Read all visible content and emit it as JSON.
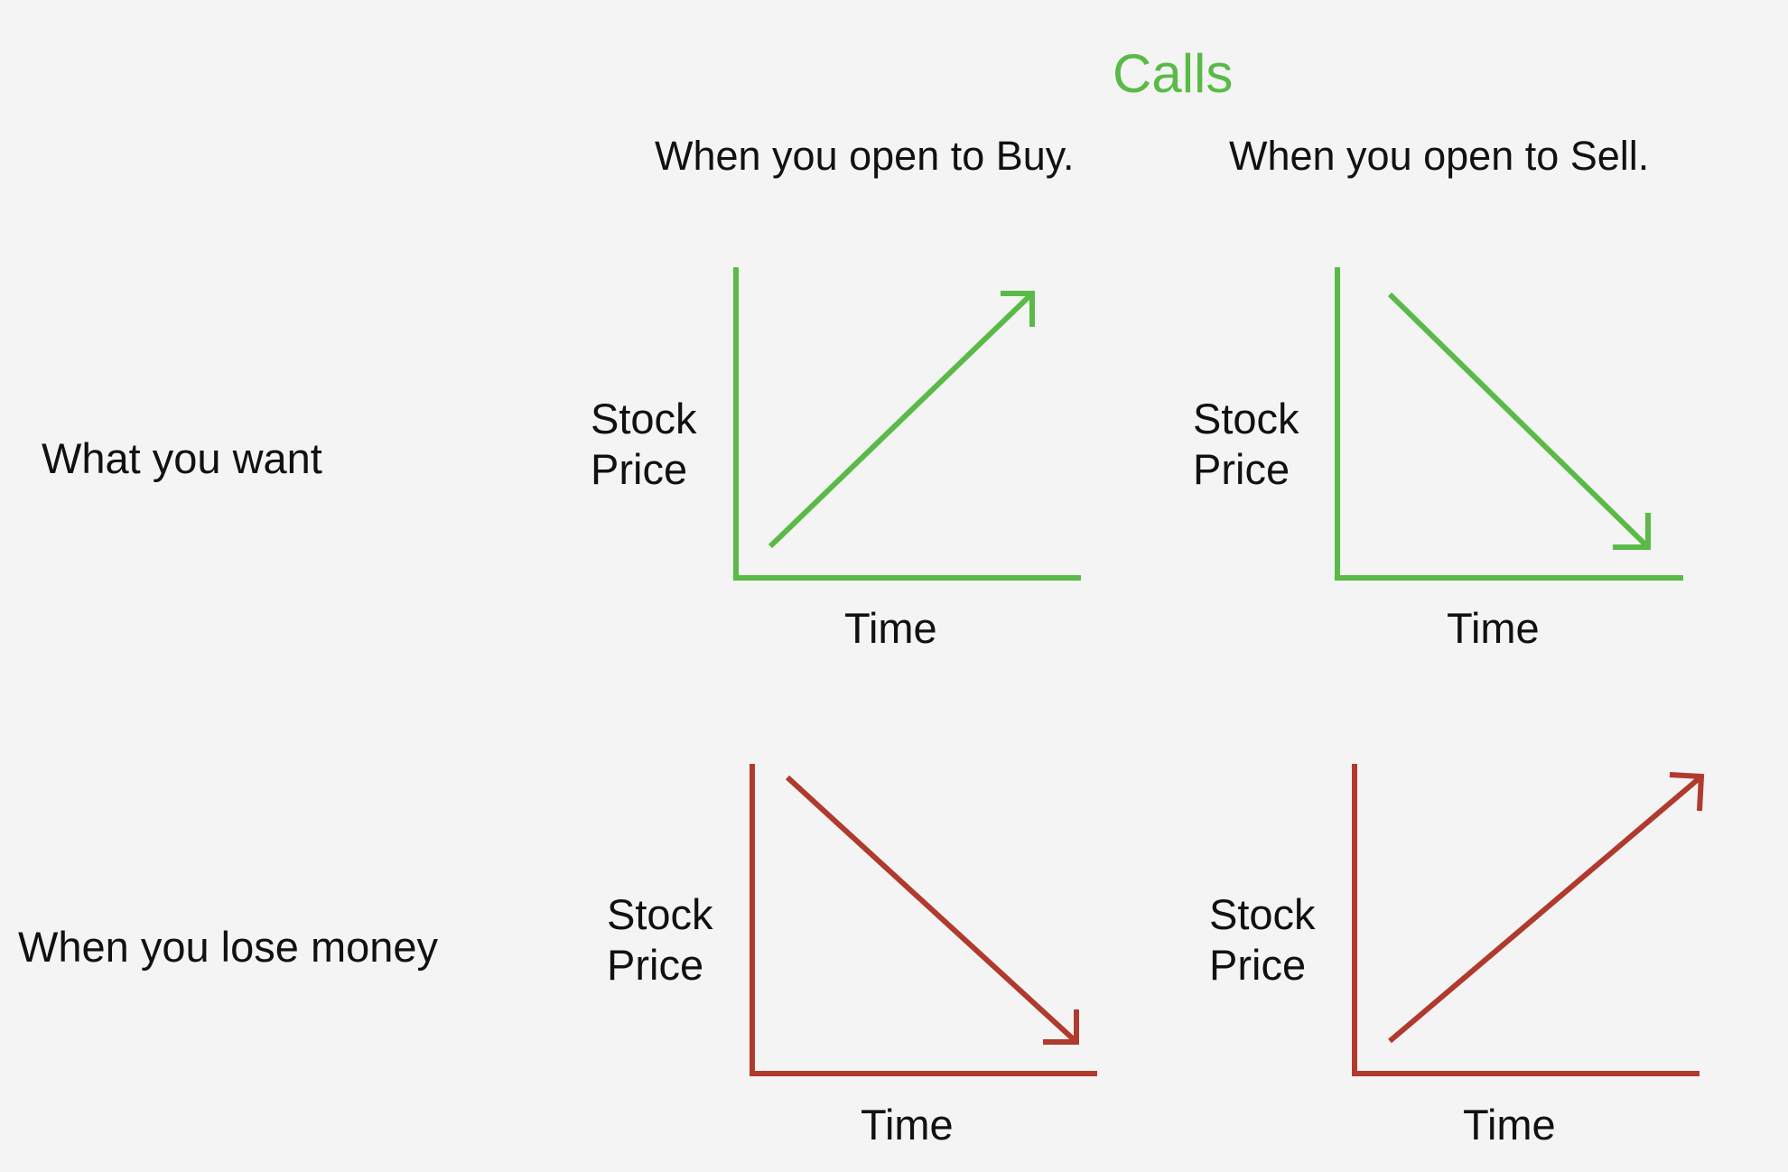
{
  "title": "Calls",
  "columns": [
    "When you open to Buy.",
    "When you open to Sell."
  ],
  "rows": [
    "What you want",
    "When you lose money"
  ],
  "panels": [
    {
      "y_label_line1": "Stock",
      "y_label_line2": "Price",
      "x_label": "Time",
      "direction": "up"
    },
    {
      "y_label_line1": "Stock",
      "y_label_line2": "Price",
      "x_label": "Time",
      "direction": "down"
    },
    {
      "y_label_line1": "Stock",
      "y_label_line2": "Price",
      "x_label": "Time",
      "direction": "down"
    },
    {
      "y_label_line1": "Stock",
      "y_label_line2": "Price",
      "x_label": "Time",
      "direction": "up"
    }
  ],
  "colors": {
    "title": "#5aba47",
    "want": "#5aba47",
    "lose": "#b03a2e",
    "text": "#111111",
    "background": "#f4f4f4"
  }
}
